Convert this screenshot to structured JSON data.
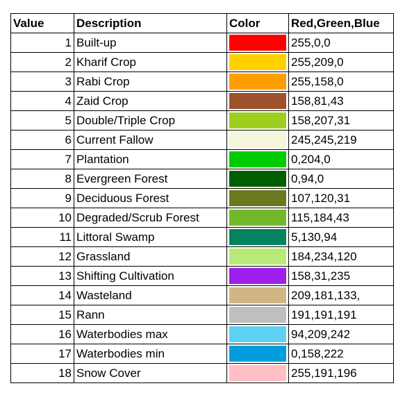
{
  "headers": {
    "value": "Value",
    "description": "Description",
    "color": "Color",
    "rgb": "Red,Green,Blue"
  },
  "rows": [
    {
      "value": "1",
      "description": "Built-up",
      "rgb": "255,0,0",
      "hex": "#ff0000"
    },
    {
      "value": "2",
      "description": "Kharif Crop",
      "rgb": "255,209,0",
      "hex": "#ffd100"
    },
    {
      "value": "3",
      "description": "Rabi Crop",
      "rgb": "255,158,0",
      "hex": "#ff9e00"
    },
    {
      "value": "4",
      "description": "Zaid Crop",
      "rgb": "158,81,43",
      "hex": "#9e512b"
    },
    {
      "value": "5",
      "description": "Double/Triple Crop",
      "rgb": "158,207,31",
      "hex": "#9ecf1f"
    },
    {
      "value": "6",
      "description": "Current Fallow",
      "rgb": "245,245,219",
      "hex": "#f5f5db"
    },
    {
      "value": "7",
      "description": "Plantation",
      "rgb": "0,204,0",
      "hex": "#00cc00"
    },
    {
      "value": "8",
      "description": "Evergreen Forest",
      "rgb": "0,94,0",
      "hex": "#005e00"
    },
    {
      "value": "9",
      "description": "Deciduous Forest",
      "rgb": "107,120,31",
      "hex": "#6b781f"
    },
    {
      "value": "10",
      "description": "Degraded/Scrub Forest",
      "rgb": "115,184,43",
      "hex": "#73b82b"
    },
    {
      "value": "11",
      "description": "Littoral Swamp",
      "rgb": "5,130,94",
      "hex": "#05825e"
    },
    {
      "value": "12",
      "description": "Grassland",
      "rgb": "184,234,120",
      "hex": "#b8ea78"
    },
    {
      "value": "13",
      "description": "Shifting Cultivation",
      "rgb": "158,31,235",
      "hex": "#9e1feb"
    },
    {
      "value": "14",
      "description": "Wasteland",
      "rgb": "209,181,133,",
      "hex": "#d1b585"
    },
    {
      "value": "15",
      "description": "Rann",
      "rgb": "191,191,191",
      "hex": "#bfbfbf"
    },
    {
      "value": "16",
      "description": "Waterbodies max",
      "rgb": "94,209,242",
      "hex": "#5ed1f2"
    },
    {
      "value": "17",
      "description": "Waterbodies min",
      "rgb": "0,158,222",
      "hex": "#009ede"
    },
    {
      "value": "18",
      "description": "Snow Cover",
      "rgb": "255,191,196",
      "hex": "#ffbfc4"
    }
  ]
}
